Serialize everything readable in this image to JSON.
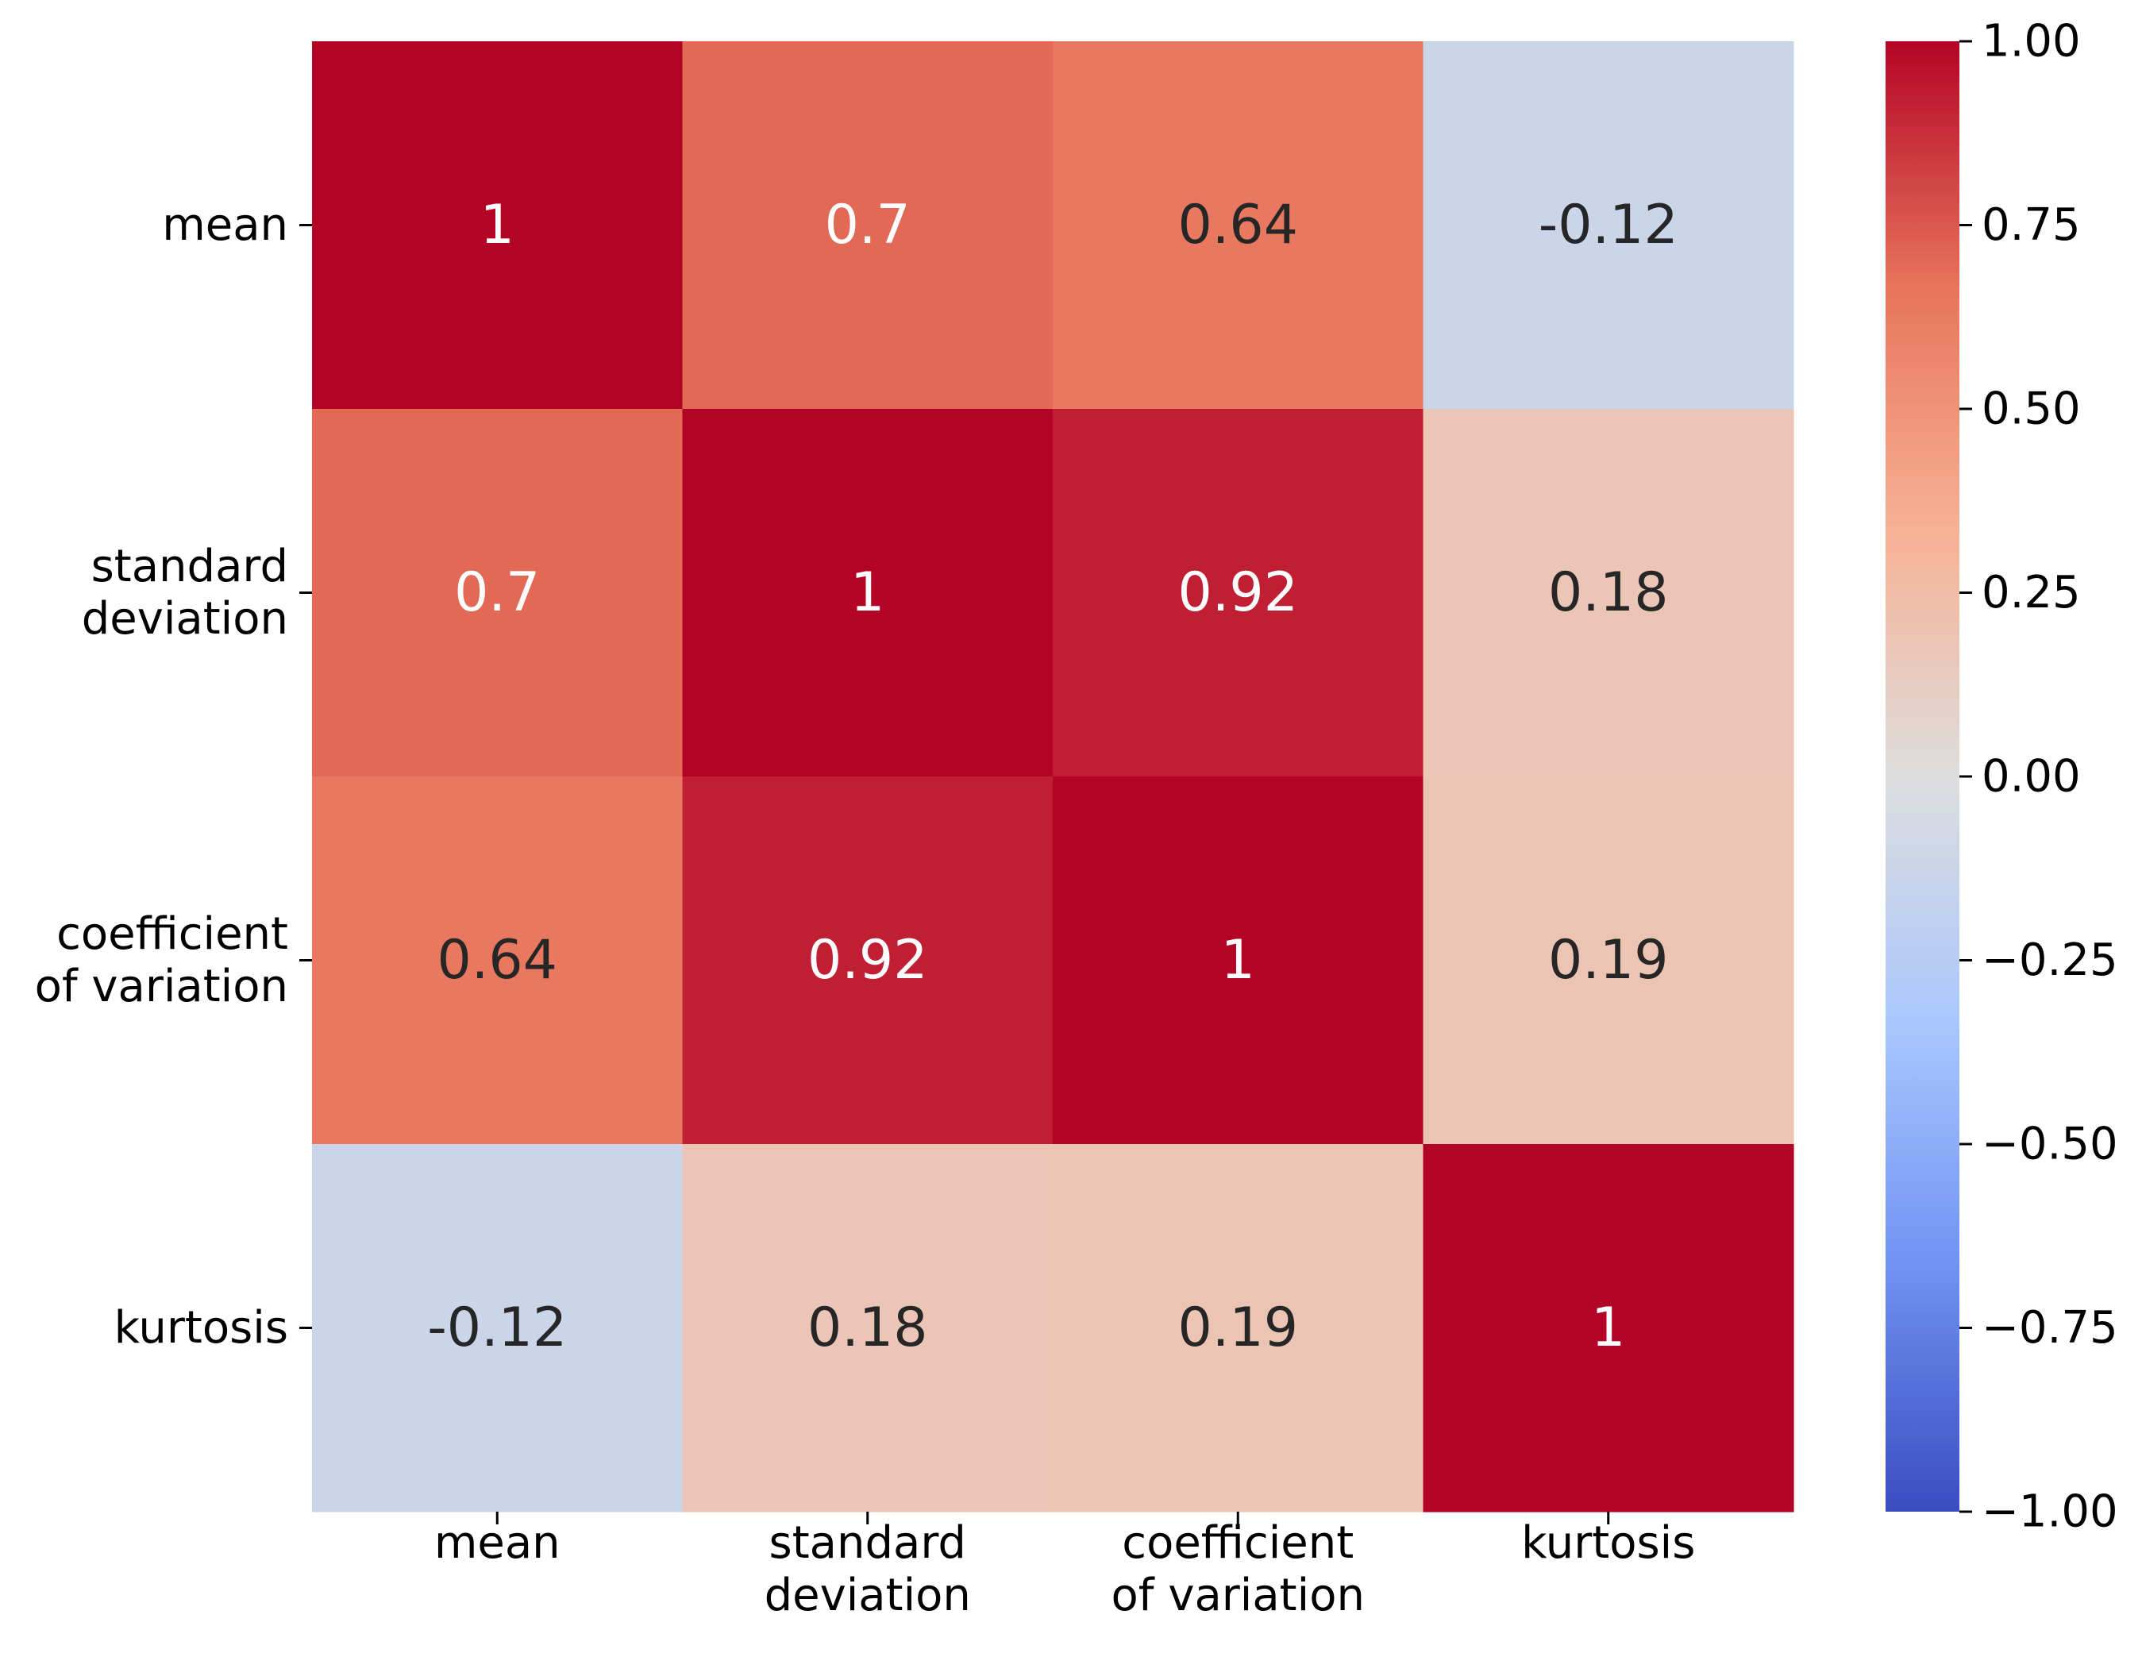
{
  "chart_data": {
    "type": "heatmap",
    "title": "",
    "xlabel": "",
    "ylabel": "",
    "row_labels": [
      [
        "mean"
      ],
      [
        "standard",
        "deviation"
      ],
      [
        "coefficient",
        "of variation"
      ],
      [
        "kurtosis"
      ]
    ],
    "col_labels": [
      [
        "mean"
      ],
      [
        "standard",
        "deviation"
      ],
      [
        "coefficient",
        "of variation"
      ],
      [
        "kurtosis"
      ]
    ],
    "values": [
      [
        1.0,
        0.7,
        0.64,
        -0.12
      ],
      [
        0.7,
        1.0,
        0.92,
        0.18
      ],
      [
        0.64,
        0.92,
        1.0,
        0.19
      ],
      [
        -0.12,
        0.18,
        0.19,
        1.0
      ]
    ],
    "annotations": [
      [
        "1",
        "0.7",
        "0.64",
        "-0.12"
      ],
      [
        "0.7",
        "1",
        "0.92",
        "0.18"
      ],
      [
        "0.64",
        "0.92",
        "1",
        "0.19"
      ],
      [
        "-0.12",
        "0.18",
        "0.19",
        "1"
      ]
    ],
    "colormap": "coolwarm",
    "colormap_stops": [
      "#3b4cc0",
      "#6f92f3",
      "#aac7fd",
      "#dddddd",
      "#f7b194",
      "#e7745b",
      "#b40426"
    ],
    "colorbar": {
      "range": [
        -1.0,
        1.0
      ],
      "ticks": [
        1.0,
        0.75,
        0.5,
        0.25,
        0.0,
        -0.25,
        -0.5,
        -0.75,
        -1.0
      ],
      "tick_labels": [
        "1.00",
        "0.75",
        "0.50",
        "0.25",
        "0.00",
        "−0.25",
        "−0.50",
        "−0.75",
        "−1.00"
      ]
    },
    "colors": {
      "text_light": "#ffffff",
      "text_dark": "#262626",
      "axis": "#000000"
    }
  }
}
